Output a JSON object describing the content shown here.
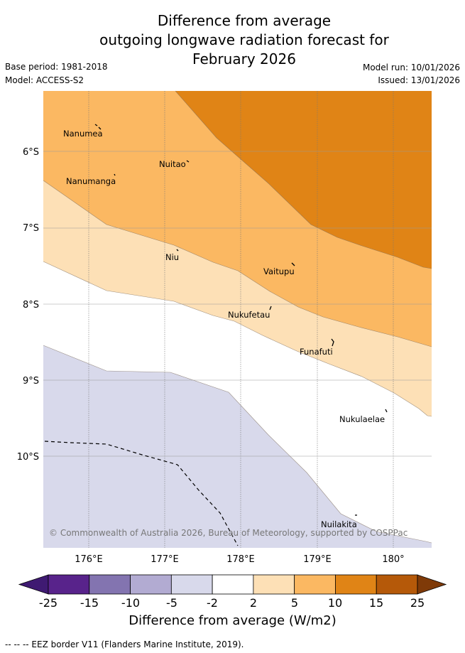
{
  "title": {
    "line1": "Difference from average",
    "line2": "outgoing longwave radiation forecast for",
    "line3": "February 2026"
  },
  "meta": {
    "base_period": "Base period: 1981-2018",
    "model": "Model: ACCESS-S2",
    "model_run": "Model run: 10/01/2026",
    "issued": "Issued: 13/01/2026"
  },
  "map": {
    "lon_labels": [
      "176°E",
      "177°E",
      "178°E",
      "179°E",
      "180°"
    ],
    "lat_labels": [
      "6°S",
      "7°S",
      "8°S",
      "9°S",
      "10°S"
    ],
    "places": [
      "Nanumea",
      "Nuitao",
      "Nanumanga",
      "Niu",
      "Vaitupu",
      "Nukufetau",
      "Funafuti",
      "Nukulaelae",
      "Nuilakita"
    ],
    "copyright": "© Commonwealth of Australia 2026, Bureau of Meteorology, supported by COSPPac"
  },
  "colorbar": {
    "ticks": [
      "-25",
      "-15",
      "-10",
      "-5",
      "-2",
      "2",
      "5",
      "10",
      "15",
      "25"
    ],
    "colors": [
      "#3f1a72",
      "#58238b",
      "#8374b0",
      "#b2abd2",
      "#d8d9eb",
      "#ffffff",
      "#fde0b6",
      "#fbb862",
      "#e08416",
      "#b55909",
      "#7f3a08"
    ],
    "title": "Difference from average (W/m2)"
  },
  "legend": {
    "eez": "-- -- -- EEZ border V11 (Flanders Marine Institute, 2019)."
  }
}
